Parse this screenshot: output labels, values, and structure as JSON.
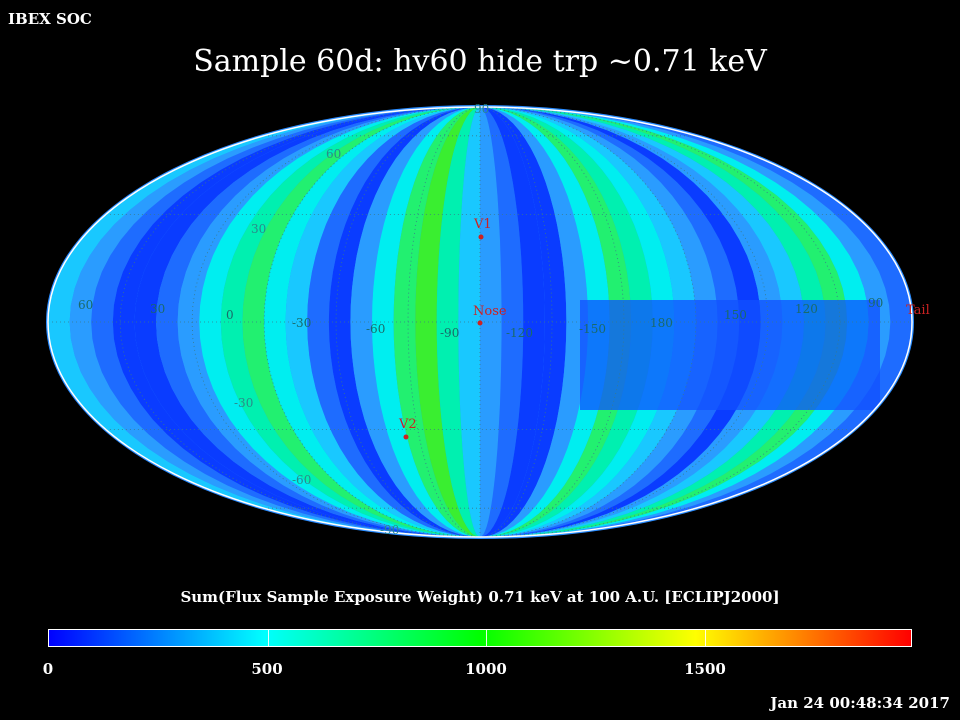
{
  "header": {
    "corner": "IBEX SOC",
    "title": "Sample 60d: hv60 hide trp ~0.71 keV"
  },
  "map": {
    "projection": "Mollweide",
    "frame": "ECLIPJ2000",
    "lat_grid_labels": [
      "90",
      "60",
      "30",
      "-30",
      "-60",
      "-90"
    ],
    "lon_grid_labels": [
      "60",
      "30",
      "0",
      "-30",
      "-60",
      "-90",
      "-120",
      "-150",
      "180",
      "150",
      "120",
      "90"
    ],
    "markers": [
      {
        "name": "V1",
        "color": "#cc2222"
      },
      {
        "name": "Nose",
        "color": "#cc2222"
      },
      {
        "name": "V2",
        "color": "#cc2222"
      },
      {
        "name": "Tail",
        "color": "#cc2222"
      }
    ],
    "grid_color": "#3a7a8a"
  },
  "colorbar": {
    "label": "Sum(Flux Sample Exposure Weight)  0.71 keV at 100 A.U. [ECLIPJ2000]",
    "min": 0,
    "max": 1970,
    "ticks": [
      "0",
      "500",
      "1000",
      "1500"
    ],
    "colors": [
      "#0000ff",
      "#00ffff",
      "#00ff00",
      "#ffff00",
      "#ff0000"
    ]
  },
  "footer": {
    "timestamp": "Jan 24 00:48:34 2017"
  }
}
